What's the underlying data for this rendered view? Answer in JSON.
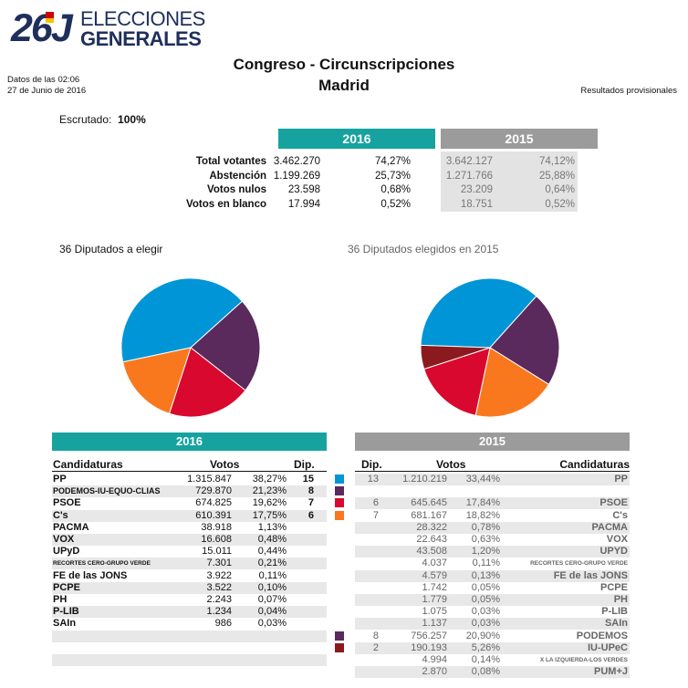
{
  "header": {
    "logo_number": "26J",
    "logo_line1": "ELECCIONES",
    "logo_line2": "GENERALES",
    "title": "Congreso - Circunscripciones",
    "subtitle": "Madrid",
    "data_time": "Datos de las 02:06",
    "data_date": "27 de Junio de 2016",
    "provisional": "Resultados provisionales"
  },
  "scrutiny": {
    "label": "Escrutado:",
    "value": "100%"
  },
  "summary": {
    "year_current": "2016",
    "year_previous": "2015",
    "rows": [
      {
        "label": "Total votantes",
        "v2016": "3.462.270",
        "p2016": "74,27%",
        "v2015": "3.642.127",
        "p2015": "74,12%"
      },
      {
        "label": "Abstención",
        "v2016": "1.199.269",
        "p2016": "25,73%",
        "v2015": "1.271.766",
        "p2015": "25,88%"
      },
      {
        "label": "Votos nulos",
        "v2016": "23.598",
        "p2016": "0,68%",
        "v2015": "23.209",
        "p2015": "0,64%"
      },
      {
        "label": "Votos en blanco",
        "v2016": "17.994",
        "p2016": "0,52%",
        "v2015": "18.751",
        "p2015": "0,52%"
      }
    ]
  },
  "pies": {
    "title_2016": "36 Diputados a elegir",
    "title_2015": "36 Diputados elegidos en 2015",
    "seats_2016": [
      {
        "party": "PP",
        "seats": 15,
        "color": "#0095d6"
      },
      {
        "party": "PODEMOS-IU-EQUO-CLIAS",
        "seats": 8,
        "color": "#5a2a5c"
      },
      {
        "party": "PSOE",
        "seats": 7,
        "color": "#d9082e"
      },
      {
        "party": "C's",
        "seats": 6,
        "color": "#f9781e"
      }
    ],
    "seats_2015": [
      {
        "party": "PP",
        "seats": 13,
        "color": "#0095d6"
      },
      {
        "party": "PODEMOS",
        "seats": 8,
        "color": "#5a2a5c"
      },
      {
        "party": "C's",
        "seats": 7,
        "color": "#f9781e"
      },
      {
        "party": "PSOE",
        "seats": 6,
        "color": "#d9082e"
      },
      {
        "party": "IU-UPeC",
        "seats": 2,
        "color": "#8b1a1f"
      }
    ]
  },
  "results": {
    "year_current": "2016",
    "year_previous": "2015",
    "col_candidaturas": "Candidaturas",
    "col_votos": "Votos",
    "col_dip": "Dip.",
    "rows": [
      {
        "l_name": "PP",
        "l_votes": "1.315.847",
        "l_pct": "38,27%",
        "l_dip": "15",
        "sq": "#0095d6",
        "r_dip": "13",
        "r_votes": "1.210.219",
        "r_pct": "33,44%",
        "r_name": "PP"
      },
      {
        "l_name": "PODEMOS-IU-EQUO-CLIAS",
        "l_votes": "729.870",
        "l_pct": "21,23%",
        "l_dip": "8",
        "sq": "#5a2a5c",
        "r_dip": "",
        "r_votes": "",
        "r_pct": "",
        "r_name": ""
      },
      {
        "l_name": "PSOE",
        "l_votes": "674.825",
        "l_pct": "19,62%",
        "l_dip": "7",
        "sq": "#d9082e",
        "r_dip": "6",
        "r_votes": "645.645",
        "r_pct": "17,84%",
        "r_name": "PSOE"
      },
      {
        "l_name": "C's",
        "l_votes": "610.391",
        "l_pct": "17,75%",
        "l_dip": "6",
        "sq": "#f9781e",
        "r_dip": "7",
        "r_votes": "681.167",
        "r_pct": "18,82%",
        "r_name": "C's"
      },
      {
        "l_name": "PACMA",
        "l_votes": "38.918",
        "l_pct": "1,13%",
        "l_dip": "",
        "sq": "",
        "r_dip": "",
        "r_votes": "28.322",
        "r_pct": "0,78%",
        "r_name": "PACMA"
      },
      {
        "l_name": "VOX",
        "l_votes": "16.608",
        "l_pct": "0,48%",
        "l_dip": "",
        "sq": "",
        "r_dip": "",
        "r_votes": "22.643",
        "r_pct": "0,63%",
        "r_name": "VOX"
      },
      {
        "l_name": "UPyD",
        "l_votes": "15.011",
        "l_pct": "0,44%",
        "l_dip": "",
        "sq": "",
        "r_dip": "",
        "r_votes": "43.508",
        "r_pct": "1,20%",
        "r_name": "UPYD"
      },
      {
        "l_name": "RECORTES CERO-GRUPO VERDE",
        "l_votes": "7.301",
        "l_pct": "0,21%",
        "l_dip": "",
        "sq": "",
        "r_dip": "",
        "r_votes": "4.037",
        "r_pct": "0,11%",
        "r_name": "RECORTES CERO-GRUPO VERDE"
      },
      {
        "l_name": "FE de las JONS",
        "l_votes": "3.922",
        "l_pct": "0,11%",
        "l_dip": "",
        "sq": "",
        "r_dip": "",
        "r_votes": "4.579",
        "r_pct": "0,13%",
        "r_name": "FE de las JONS"
      },
      {
        "l_name": "PCPE",
        "l_votes": "3.522",
        "l_pct": "0,10%",
        "l_dip": "",
        "sq": "",
        "r_dip": "",
        "r_votes": "1.742",
        "r_pct": "0,05%",
        "r_name": "PCPE"
      },
      {
        "l_name": "PH",
        "l_votes": "2.243",
        "l_pct": "0,07%",
        "l_dip": "",
        "sq": "",
        "r_dip": "",
        "r_votes": "1.779",
        "r_pct": "0,05%",
        "r_name": "PH"
      },
      {
        "l_name": "P-LIB",
        "l_votes": "1.234",
        "l_pct": "0,04%",
        "l_dip": "",
        "sq": "",
        "r_dip": "",
        "r_votes": "1.075",
        "r_pct": "0,03%",
        "r_name": "P-LIB"
      },
      {
        "l_name": "SAIn",
        "l_votes": "986",
        "l_pct": "0,03%",
        "l_dip": "",
        "sq": "",
        "r_dip": "",
        "r_votes": "1.137",
        "r_pct": "0,03%",
        "r_name": "SAIn"
      },
      {
        "l_name": "",
        "l_votes": "",
        "l_pct": "",
        "l_dip": "",
        "sq": "#5a2a5c",
        "r_dip": "8",
        "r_votes": "756.257",
        "r_pct": "20,90%",
        "r_name": "PODEMOS"
      },
      {
        "l_name": "",
        "l_votes": "",
        "l_pct": "",
        "l_dip": "",
        "sq": "#8b1a1f",
        "r_dip": "2",
        "r_votes": "190.193",
        "r_pct": "5,26%",
        "r_name": "IU-UPeC"
      },
      {
        "l_name": "",
        "l_votes": "",
        "l_pct": "",
        "l_dip": "",
        "sq": "",
        "r_dip": "",
        "r_votes": "4.994",
        "r_pct": "0,14%",
        "r_name": "X LA IZQUIERDA-LOS VERDES"
      },
      {
        "l_name": "",
        "l_votes": "",
        "l_pct": "",
        "l_dip": "",
        "sq": "",
        "r_dip": "",
        "r_votes": "2.870",
        "r_pct": "0,08%",
        "r_name": "PUM+J"
      }
    ]
  }
}
